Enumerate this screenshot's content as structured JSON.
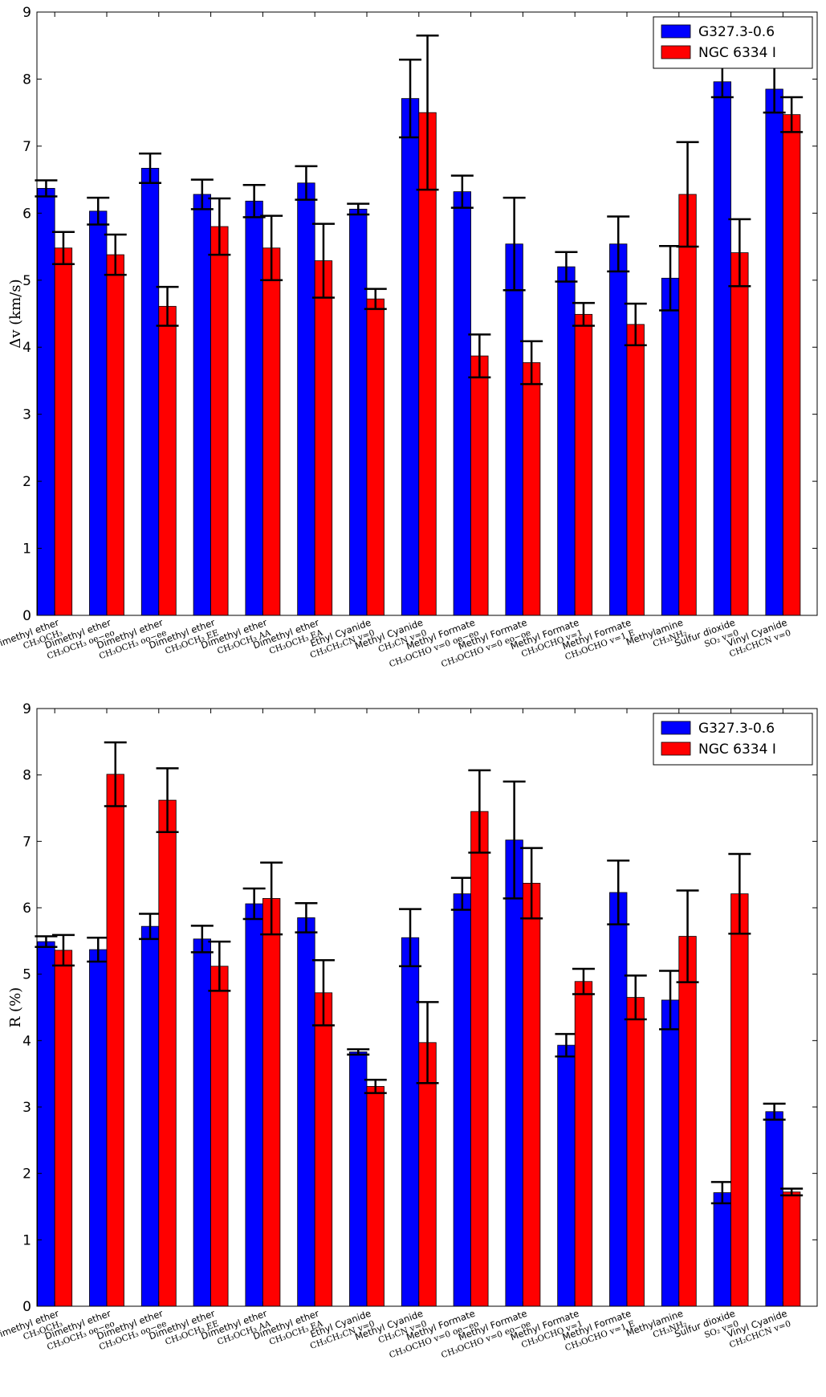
{
  "colors": {
    "series1": "#0000ff",
    "series2": "#ff0000",
    "errorbar": "#000000"
  },
  "chart_data": [
    {
      "type": "bar",
      "ylabel": "Δv (km/s)",
      "ylim": [
        0,
        9
      ],
      "yticks": [
        "0",
        "1",
        "2",
        "3",
        "4",
        "5",
        "6",
        "7",
        "8",
        "9"
      ],
      "legend_position": "top-right",
      "categories": [
        {
          "line1": "Dimethyl ether",
          "line2": "CH₃OCH₃"
        },
        {
          "line1": "Dimethyl ether",
          "line2": "CH₃OCH₃ oe−eo"
        },
        {
          "line1": "Dimethyl ether",
          "line2": "CH₃OCH₃ oo−ee"
        },
        {
          "line1": "Dimethyl ether",
          "line2": "CH₃OCH₃ EE"
        },
        {
          "line1": "Dimethyl ether",
          "line2": "CH₃OCH₃ AA"
        },
        {
          "line1": "Dimethyl ether",
          "line2": "CH₃OCH₃ EA"
        },
        {
          "line1": "Ethyl Cyanide",
          "line2": "CH₃CH₂CN v=0"
        },
        {
          "line1": "Methyl Cyanide",
          "line2": "CH₃CN v=0"
        },
        {
          "line1": "Methyl Formate",
          "line2": "CH₃OCHO v=0 oe−eo"
        },
        {
          "line1": "Methyl Formate",
          "line2": "CH₃OCHO v=0 eo−oe"
        },
        {
          "line1": "Methyl Formate",
          "line2": "CH₃OCHO v=1"
        },
        {
          "line1": "Methyl Formate",
          "line2": "CH₃OCHO v=1 E"
        },
        {
          "line1": "Methylamine",
          "line2": "CH₃NH₂"
        },
        {
          "line1": "Sulfur dioxide",
          "line2": "SO₂ v=0"
        },
        {
          "line1": "Vinyl Cyanide",
          "line2": "CH₂CHCN v=0"
        }
      ],
      "series": [
        {
          "name": "G327.3-0.6",
          "values": [
            6.37,
            6.03,
            6.67,
            6.28,
            6.18,
            6.45,
            6.06,
            7.71,
            6.32,
            5.54,
            5.2,
            5.54,
            5.03,
            7.96,
            7.85
          ],
          "errors": [
            0.12,
            0.2,
            0.22,
            0.22,
            0.24,
            0.25,
            0.08,
            0.58,
            0.24,
            0.69,
            0.22,
            0.41,
            0.48,
            0.23,
            0.35
          ]
        },
        {
          "name": "NGC 6334 I",
          "values": [
            5.48,
            5.38,
            4.61,
            5.8,
            5.48,
            5.29,
            4.72,
            7.5,
            3.87,
            3.77,
            4.49,
            4.34,
            6.28,
            5.41,
            7.47
          ],
          "errors": [
            0.24,
            0.3,
            0.29,
            0.42,
            0.48,
            0.55,
            0.15,
            1.15,
            0.32,
            0.32,
            0.17,
            0.31,
            0.78,
            0.5,
            0.26
          ]
        }
      ]
    },
    {
      "type": "bar",
      "ylabel": "R (%)",
      "ylim": [
        0,
        9
      ],
      "yticks": [
        "0",
        "1",
        "2",
        "3",
        "4",
        "5",
        "6",
        "7",
        "8",
        "9"
      ],
      "legend_position": "top-right",
      "categories": [
        {
          "line1": "Dimethyl ether",
          "line2": "CH₃OCH₃"
        },
        {
          "line1": "Dimethyl ether",
          "line2": "CH₃OCH₃ oe−eo"
        },
        {
          "line1": "Dimethyl ether",
          "line2": "CH₃OCH₃ oo−ee"
        },
        {
          "line1": "Dimethyl ether",
          "line2": "CH₃OCH₃ EE"
        },
        {
          "line1": "Dimethyl ether",
          "line2": "CH₃OCH₃ AA"
        },
        {
          "line1": "Dimethyl ether",
          "line2": "CH₃OCH₃ EA"
        },
        {
          "line1": "Ethyl Cyanide",
          "line2": "CH₃CH₂CN v=0"
        },
        {
          "line1": "Methyl Cyanide",
          "line2": "CH₃CN v=0"
        },
        {
          "line1": "Methyl Formate",
          "line2": "CH₃OCHO v=0 oe−eo"
        },
        {
          "line1": "Methyl Formate",
          "line2": "CH₃OCHO v=0 eo−oe"
        },
        {
          "line1": "Methyl Formate",
          "line2": "CH₃OCHO v=1"
        },
        {
          "line1": "Methyl Formate",
          "line2": "CH₃OCHO v=1 E"
        },
        {
          "line1": "Methylamine",
          "line2": "CH₃NH₂"
        },
        {
          "line1": "Sulfur dioxide",
          "line2": "SO₂ v=0"
        },
        {
          "line1": "Vinyl Cyanide",
          "line2": "CH₂CHCN v=0"
        }
      ],
      "series": [
        {
          "name": "G327.3-0.6",
          "values": [
            5.49,
            5.37,
            5.72,
            5.53,
            6.06,
            5.85,
            3.83,
            5.55,
            6.21,
            7.02,
            3.93,
            6.23,
            4.61,
            1.71,
            2.93
          ],
          "errors": [
            0.08,
            0.18,
            0.19,
            0.2,
            0.23,
            0.22,
            0.04,
            0.43,
            0.24,
            0.88,
            0.17,
            0.48,
            0.44,
            0.16,
            0.12
          ]
        },
        {
          "name": "NGC 6334 I",
          "values": [
            5.36,
            8.01,
            7.62,
            5.12,
            6.14,
            4.72,
            3.31,
            3.97,
            7.45,
            6.37,
            4.89,
            4.65,
            5.57,
            6.21,
            1.72
          ],
          "errors": [
            0.23,
            0.48,
            0.48,
            0.37,
            0.54,
            0.49,
            0.1,
            0.61,
            0.62,
            0.53,
            0.19,
            0.33,
            0.69,
            0.6,
            0.05
          ]
        }
      ]
    }
  ]
}
